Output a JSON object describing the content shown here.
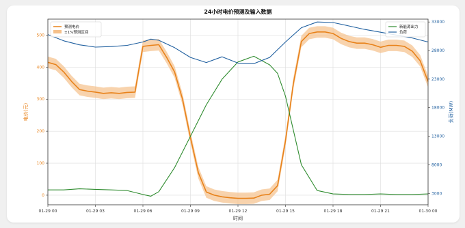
{
  "chart_data": {
    "type": "line",
    "title": "24小时电价预测及输入数据",
    "xlabel": "时间",
    "ylabel_left": "电价(元)",
    "ylabel_right": "负荷(MW)",
    "x_ticks": [
      "01-29 00",
      "01-29 03",
      "01-29 06",
      "01-29 09",
      "01-29 12",
      "01-29 15",
      "01-29 18",
      "01-29 21",
      "01-30 00"
    ],
    "x_range": [
      0,
      24
    ],
    "y_left_range": [
      -30,
      550
    ],
    "y_left_ticks": [
      0,
      100,
      200,
      300,
      400,
      500
    ],
    "y_right_range": [
      1000,
      33500
    ],
    "y_right_ticks": [
      3000,
      8000,
      13000,
      18000,
      23000,
      28000,
      33000
    ],
    "grid": true,
    "legend_left": {
      "placement": "top-left",
      "entries": [
        "预测电价",
        "±1%预测区间"
      ]
    },
    "legend_right": {
      "placement": "top-right",
      "entries": [
        "新能源出力",
        "负荷"
      ]
    },
    "colors": {
      "price": "#e8821a",
      "band": "#f5c08a",
      "renewable": "#2e8b2e",
      "load": "#1f5f9f"
    },
    "series": [
      {
        "name": "预测电价",
        "axis": "left",
        "x": [
          0,
          0.5,
          1,
          1.5,
          2,
          2.5,
          3,
          3.5,
          4,
          4.5,
          5,
          5.5,
          6,
          6.5,
          7,
          7.5,
          8,
          8.5,
          9,
          9.5,
          10,
          10.5,
          11,
          11.5,
          12,
          12.5,
          13,
          13.5,
          14,
          14.5,
          15,
          15.5,
          16,
          16.5,
          17,
          17.5,
          18,
          18.5,
          19,
          19.5,
          20,
          20.5,
          21,
          21.5,
          22,
          22.5,
          23,
          23.5,
          24
        ],
        "values": [
          415,
          408,
          385,
          355,
          330,
          325,
          322,
          318,
          320,
          318,
          321,
          322,
          465,
          468,
          470,
          430,
          385,
          300,
          180,
          70,
          10,
          0,
          -5,
          -8,
          -10,
          -10,
          -9,
          0,
          3,
          30,
          170,
          350,
          480,
          505,
          510,
          510,
          505,
          490,
          480,
          475,
          475,
          470,
          462,
          468,
          468,
          465,
          450,
          420,
          355
        ],
        "band_pct": 1
      },
      {
        "name": "新能源出力",
        "axis": "right",
        "x": [
          0,
          1,
          2,
          3,
          4,
          5,
          6,
          6.5,
          7,
          8,
          9,
          10,
          11,
          12,
          13,
          14,
          14.5,
          15,
          16,
          17,
          18,
          19,
          20,
          21,
          22,
          23,
          24
        ],
        "values": [
          3600,
          3600,
          3800,
          3700,
          3600,
          3500,
          2800,
          2500,
          3300,
          7500,
          13000,
          18500,
          23000,
          26000,
          27000,
          25500,
          24000,
          20000,
          8000,
          3500,
          2900,
          2800,
          2800,
          2900,
          2800,
          2800,
          2900
        ]
      },
      {
        "name": "负荷",
        "axis": "right",
        "x": [
          0,
          1,
          2,
          3,
          4,
          5,
          6,
          6.5,
          7,
          8,
          9,
          10,
          11,
          12,
          13,
          14,
          15,
          16,
          17,
          18,
          19,
          20,
          21,
          22,
          23,
          24
        ],
        "values": [
          30800,
          29700,
          29000,
          28600,
          28700,
          28900,
          29500,
          30000,
          29800,
          28500,
          26800,
          25900,
          26900,
          25800,
          25700,
          26800,
          29500,
          32000,
          33000,
          32900,
          32300,
          31700,
          31200,
          30700,
          30200,
          29500
        ]
      }
    ]
  }
}
